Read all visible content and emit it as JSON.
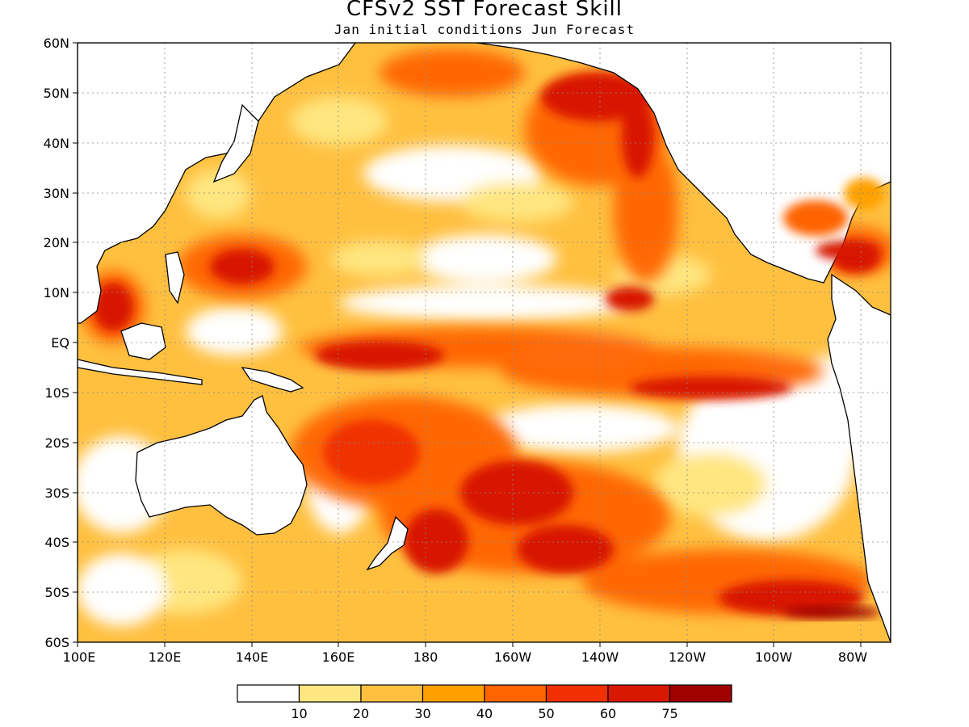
{
  "header": {
    "title": "CFSv2 SST Forecast Skill",
    "subtitle": "Jan initial conditions  Jun Forecast"
  },
  "map": {
    "lat_labels": [
      "60N",
      "50N",
      "40N",
      "30N",
      "20N",
      "10N",
      "EQ",
      "10S",
      "20S",
      "30S",
      "40S",
      "50S",
      "60S"
    ],
    "lon_labels": [
      "100E",
      "120E",
      "140E",
      "160E",
      "180",
      "160W",
      "140W",
      "120W",
      "100W",
      "80W"
    ]
  },
  "legend": {
    "colors": [
      "#ffffff",
      "#ffe680",
      "#ffc040",
      "#ffa000",
      "#ff6400",
      "#f03000",
      "#d81800",
      "#a00000"
    ],
    "labels": [
      "10",
      "20",
      "30",
      "40",
      "50",
      "60",
      "75"
    ]
  }
}
